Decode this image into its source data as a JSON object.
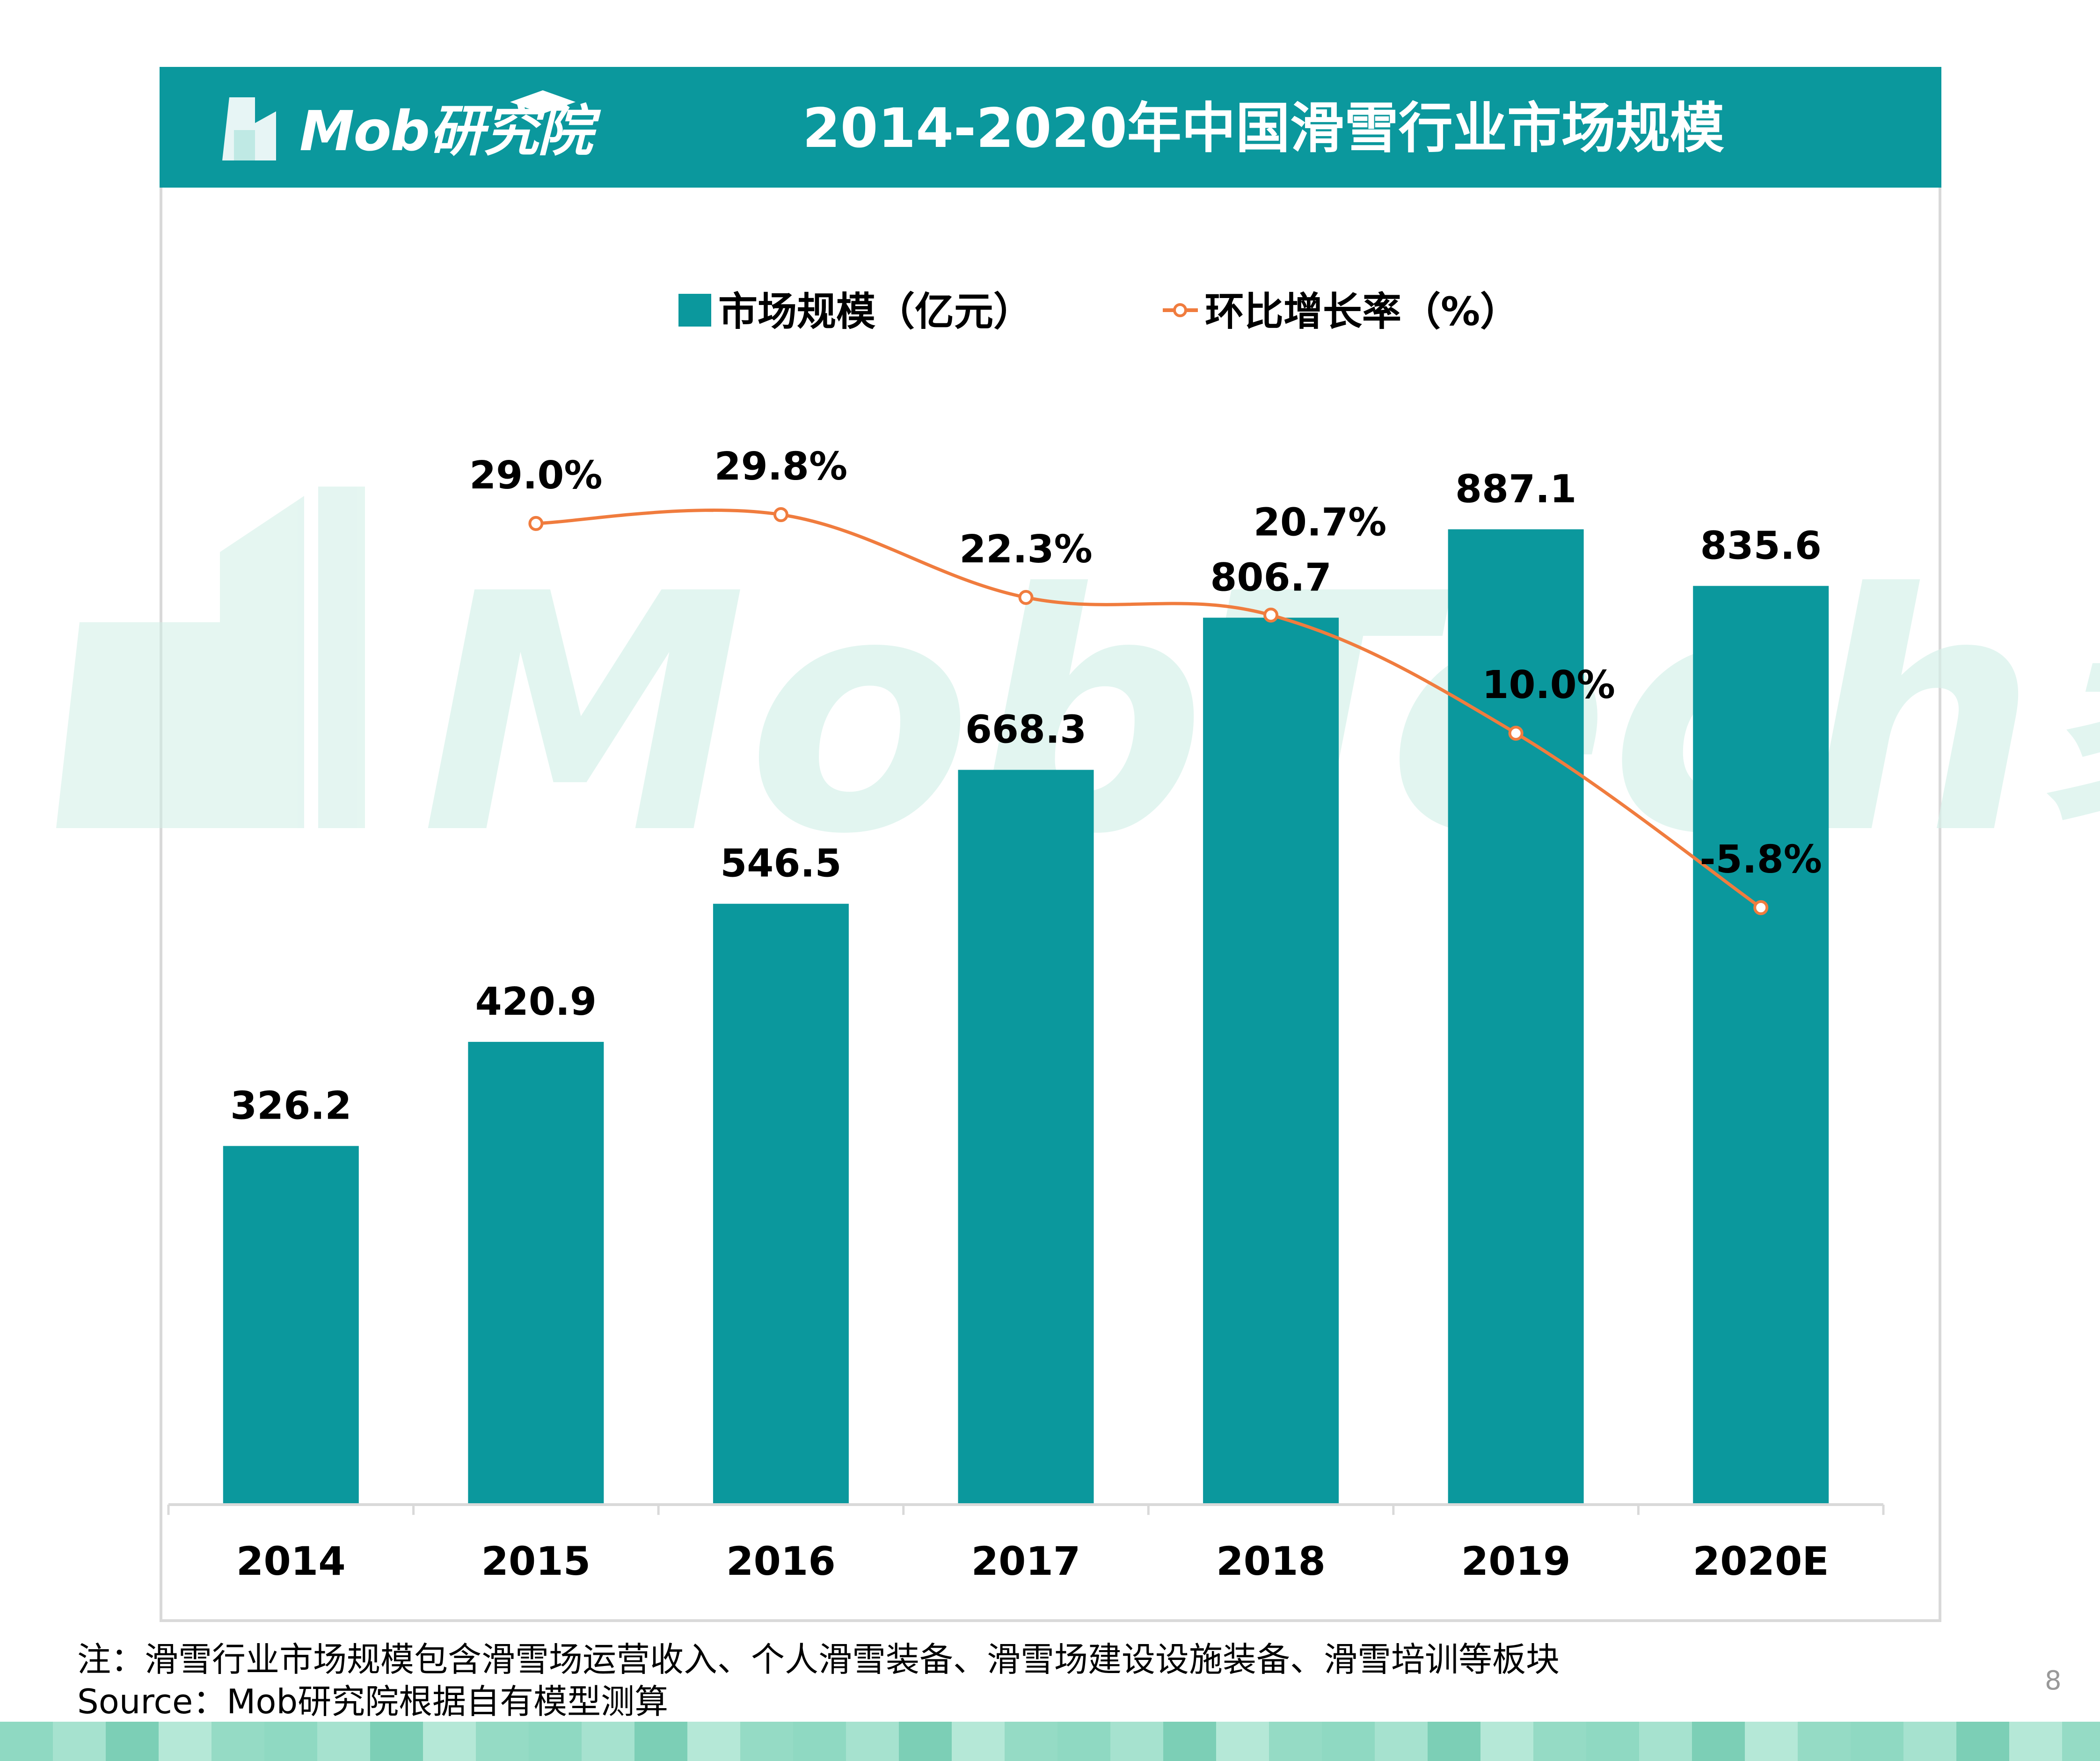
{
  "header": {
    "logo_text": "Mob研究院",
    "title": "2014-2020年中国滑雪行业市场规模"
  },
  "watermark": {
    "text": "MobTech袤博"
  },
  "chart_data": {
    "type": "bar",
    "categories": [
      "2014",
      "2015",
      "2016",
      "2017",
      "2018",
      "2019",
      "2020E"
    ],
    "series": [
      {
        "name": "市场规模（亿元）",
        "type": "bar",
        "values": [
          326.2,
          420.9,
          546.5,
          668.3,
          806.7,
          887.1,
          835.6
        ],
        "labels": [
          "326.2",
          "420.9",
          "546.5",
          "668.3",
          "806.7",
          "887.1",
          "835.6"
        ],
        "color": "#0b989d"
      },
      {
        "name": "环比增长率（%）",
        "type": "line",
        "values": [
          null,
          29.0,
          29.8,
          22.3,
          20.7,
          10.0,
          -5.8
        ],
        "labels": [
          "",
          "29.0%",
          "29.8%",
          "22.3%",
          "20.7%",
          "10.0%",
          "-5.8%"
        ],
        "color": "#f07c3e"
      }
    ],
    "legend": [
      "市场规模（亿元）",
      "环比增长率（%）"
    ],
    "legend_position": "top"
  },
  "footer": {
    "note": "注：滑雪行业市场规模包含滑雪场运营收入、个人滑雪装备、滑雪场建设设施装备、滑雪培训等板块",
    "source": "Source：Mob研究院根据自有模型测算",
    "page_number": "8"
  },
  "colors": {
    "brand": "#0b989d",
    "accent": "#f07c3e",
    "watermark": "#cfeee6",
    "footer_band": "#8fd9c2"
  }
}
